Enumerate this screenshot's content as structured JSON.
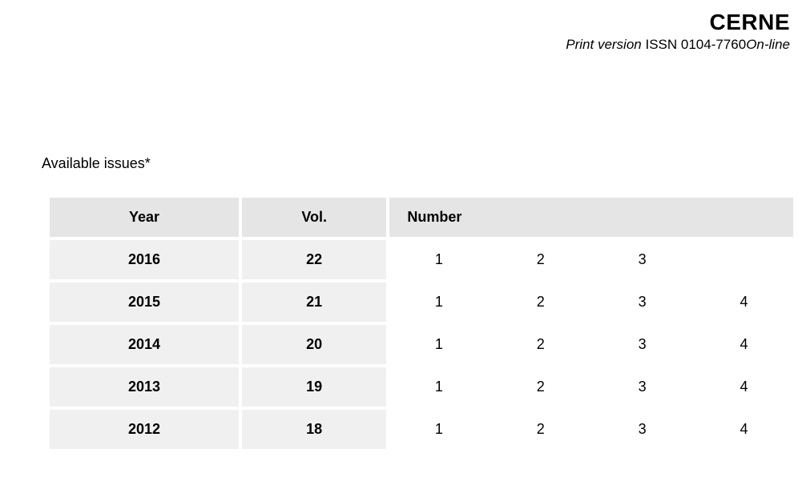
{
  "header": {
    "journal_title": "CERNE",
    "print_version_label": "Print version",
    "issn_label": " ISSN ",
    "issn_value": "0104-7760",
    "online_label": "On-line"
  },
  "section": {
    "title": "Available issues*"
  },
  "table": {
    "columns": {
      "year": "Year",
      "vol": "Vol.",
      "number": "Number"
    },
    "rows": [
      {
        "year": "2016",
        "vol": "22",
        "numbers": [
          "1",
          "2",
          "3",
          ""
        ]
      },
      {
        "year": "2015",
        "vol": "21",
        "numbers": [
          "1",
          "2",
          "3",
          "4"
        ]
      },
      {
        "year": "2014",
        "vol": "20",
        "numbers": [
          "1",
          "2",
          "3",
          "4"
        ]
      },
      {
        "year": "2013",
        "vol": "19",
        "numbers": [
          "1",
          "2",
          "3",
          "4"
        ]
      },
      {
        "year": "2012",
        "vol": "18",
        "numbers": [
          "1",
          "2",
          "3",
          "4"
        ]
      }
    ],
    "styling": {
      "header_bg": "#e5e5e5",
      "row_label_bg": "#f0f0f0",
      "num_cell_bg": "#ffffff",
      "border_spacing": 4,
      "font_size": 18,
      "year_col_width": 238,
      "vol_col_width": 182,
      "num_cell_width": 124
    }
  }
}
